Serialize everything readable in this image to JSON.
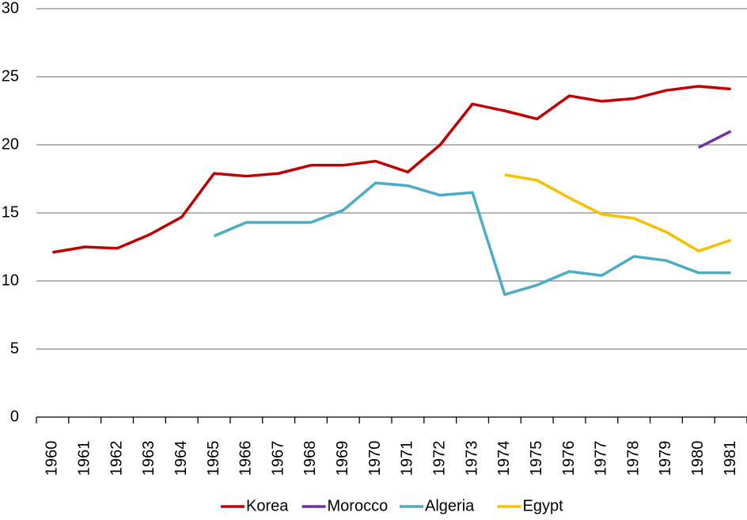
{
  "chart_data": {
    "type": "line",
    "categories": [
      "1960",
      "1961",
      "1962",
      "1963",
      "1964",
      "1965",
      "1966",
      "1967",
      "1968",
      "1969",
      "1970",
      "1971",
      "1972",
      "1973",
      "1974",
      "1975",
      "1976",
      "1977",
      "1978",
      "1979",
      "1980",
      "1981"
    ],
    "series": [
      {
        "name": "Korea",
        "color": "#c00000",
        "values": [
          12.1,
          12.5,
          12.4,
          13.4,
          14.7,
          17.9,
          17.7,
          17.9,
          18.5,
          18.5,
          18.8,
          18.0,
          20.0,
          23.0,
          22.5,
          21.9,
          23.6,
          23.2,
          23.4,
          24.0,
          24.3,
          24.1
        ]
      },
      {
        "name": "Morocco",
        "color": "#7030a0",
        "values": [
          null,
          null,
          null,
          null,
          null,
          null,
          null,
          null,
          null,
          null,
          null,
          null,
          null,
          null,
          null,
          null,
          null,
          null,
          null,
          null,
          19.8,
          21.0
        ]
      },
      {
        "name": "Algeria",
        "color": "#4bacc6",
        "values": [
          null,
          null,
          null,
          null,
          null,
          13.3,
          14.3,
          14.3,
          14.3,
          15.2,
          17.2,
          17.0,
          16.3,
          16.5,
          9.0,
          9.7,
          10.7,
          10.4,
          11.8,
          11.5,
          10.6,
          10.6
        ]
      },
      {
        "name": "Egypt",
        "color": "#f5c000",
        "values": [
          null,
          null,
          null,
          null,
          null,
          null,
          null,
          null,
          null,
          null,
          null,
          null,
          null,
          null,
          17.8,
          17.4,
          16.1,
          14.9,
          14.6,
          13.6,
          12.2,
          13.0
        ]
      }
    ],
    "ylim": [
      0,
      30
    ],
    "yticks": [
      0,
      5,
      10,
      15,
      20,
      25,
      30
    ],
    "grid": true,
    "legend": "bottom"
  }
}
